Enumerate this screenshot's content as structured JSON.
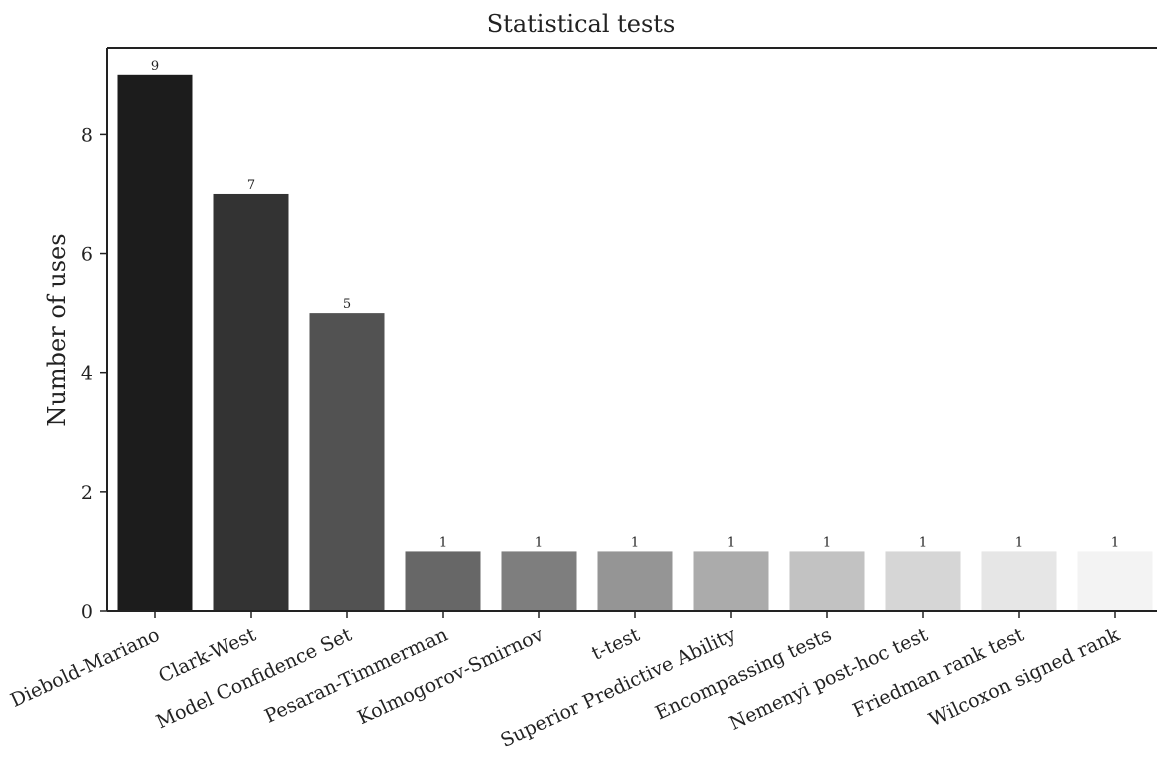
{
  "chart_data": {
    "type": "bar",
    "title": "Statistical tests",
    "xlabel": "",
    "ylabel": "Number of uses",
    "ylim": [
      0,
      9.45
    ],
    "yticks": [
      0,
      2,
      4,
      6,
      8
    ],
    "grid": false,
    "categories": [
      "Diebold-Mariano",
      "Clark-West",
      "Model Confidence Set",
      "Pesaran-Timmerman",
      "Kolmogorov-Smirnov",
      "t-test",
      "Superior Predictive Ability",
      "Encompassing tests",
      "Nemenyi post-hoc test",
      "Friedman rank test",
      "Wilcoxon signed rank"
    ],
    "values": [
      9,
      7,
      5,
      1,
      1,
      1,
      1,
      1,
      1,
      1,
      1
    ],
    "colors": [
      "#1c1c1c",
      "#333333",
      "#525252",
      "#676767",
      "#7e7e7e",
      "#959595",
      "#ababab",
      "#c2c2c2",
      "#d6d6d6",
      "#e6e6e6",
      "#f3f3f3"
    ]
  }
}
